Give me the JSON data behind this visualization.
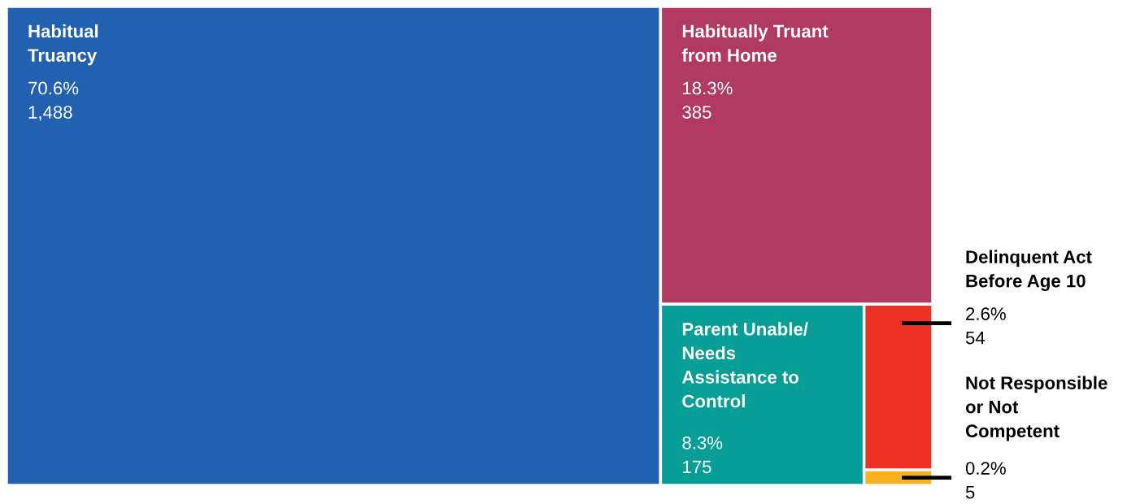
{
  "chart_data": {
    "type": "other",
    "categories": [
      "Habitual\nTruancy",
      "Habitually Truant\nfrom Home",
      "Parent Unable/\nNeeds\nAssistance to\nControl",
      "Delinquent Act\nBefore Age 10",
      "Not Responsible\nor Not\nCompetent"
    ],
    "values": [
      1488,
      385,
      175,
      54,
      5
    ],
    "value_labels": [
      "70.6%\n1,488",
      "18.3%\n385",
      "8.3%\n175",
      "2.6%\n54",
      "0.2%\n5"
    ],
    "colors": [
      "#2161b0",
      "#b03a62",
      "#069e96",
      "#ee3124",
      "#f9b121"
    ]
  }
}
